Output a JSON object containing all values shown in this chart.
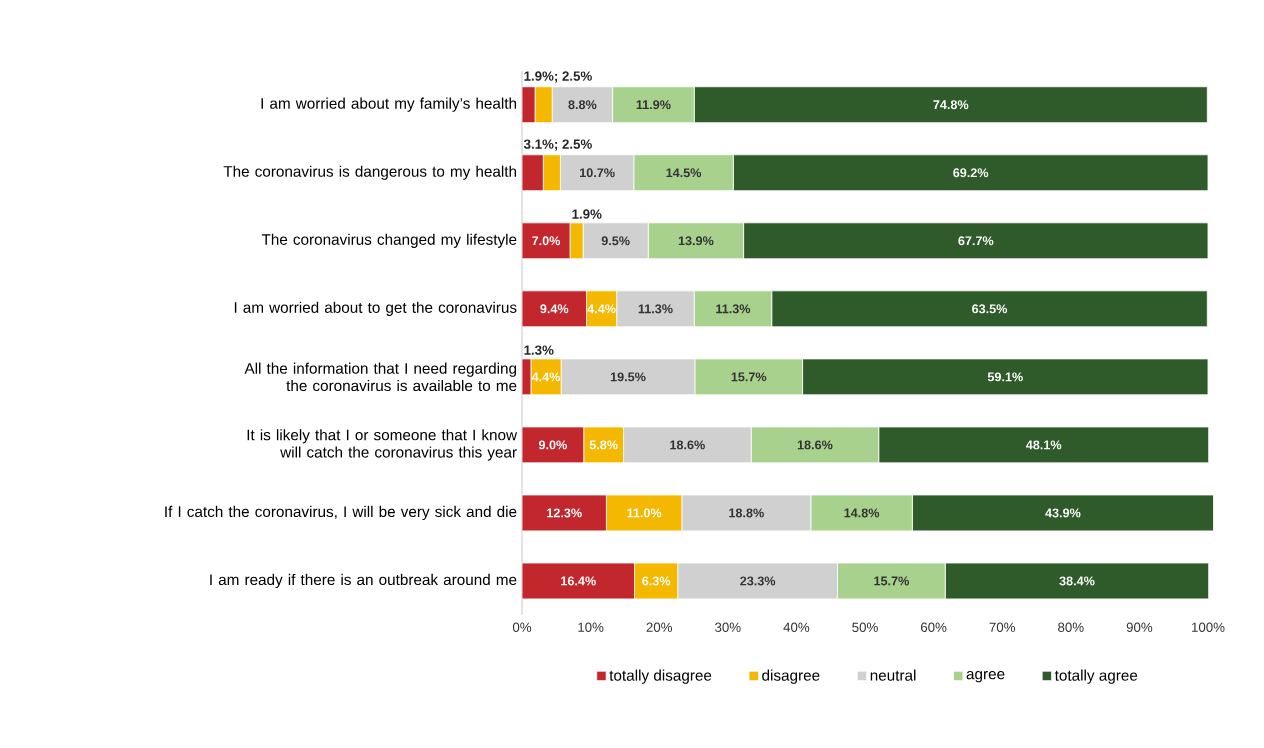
{
  "chart_data": {
    "type": "bar",
    "orientation": "horizontal",
    "stacked": true,
    "categories": [
      "I am worried about my family’s health",
      "The coronavirus is dangerous to my health",
      "The coronavirus changed my lifestyle",
      "I am worried about to get the coronavirus",
      "All the information that I need regarding the coronavirus is available to me",
      "It is likely that I or someone that I know will catch the coronavirus this year",
      "If I catch the coronavirus, I will be very sick and die",
      "I am ready if there is an outbreak around me"
    ],
    "series": [
      {
        "name": "totally disagree",
        "color": "#c1272d",
        "values": [
          1.9,
          3.1,
          7.0,
          9.4,
          1.3,
          9.0,
          12.3,
          16.4
        ],
        "value_labels": [
          null,
          null,
          "7.0%",
          "9.4%",
          null,
          "9.0%",
          "12.3%",
          "16.4%"
        ]
      },
      {
        "name": "disagree",
        "color": "#f5b800",
        "values": [
          2.5,
          2.5,
          1.9,
          4.4,
          4.4,
          5.8,
          11.0,
          6.3
        ],
        "value_labels": [
          null,
          null,
          null,
          "4.4%",
          "4.4%",
          "5.8%",
          "11.0%",
          "6.3%"
        ]
      },
      {
        "name": "neutral",
        "color": "#d0d0d0",
        "values": [
          8.8,
          10.7,
          9.5,
          11.3,
          19.5,
          18.6,
          18.8,
          23.3
        ],
        "value_labels": [
          "8.8%",
          "10.7%",
          "9.5%",
          "11.3%",
          "19.5%",
          "18.6%",
          "18.8%",
          "23.3%"
        ]
      },
      {
        "name": "agree",
        "color": "#a9d18e",
        "values": [
          11.9,
          14.5,
          13.9,
          11.3,
          15.7,
          18.6,
          14.8,
          15.7
        ],
        "value_labels": [
          "11.9%",
          "14.5%",
          "13.9%",
          "11.3%",
          "15.7%",
          "18.6%",
          "14.8%",
          "15.7%"
        ]
      },
      {
        "name": "totally agree",
        "color": "#2f5a2a",
        "values": [
          74.8,
          69.2,
          67.7,
          63.5,
          59.1,
          48.1,
          43.9,
          38.4
        ],
        "value_labels": [
          "74.8%",
          "69.2%",
          "67.7%",
          "63.5%",
          "59.1%",
          "48.1%",
          "43.9%",
          "38.4%"
        ]
      }
    ],
    "annotations": [
      "1.9%; 2.5%",
      "3.1%; 2.5%",
      "1.9%",
      "1.3%"
    ],
    "xlim": [
      0,
      101
    ],
    "xticks": [
      {
        "value": 0,
        "label": "0%"
      },
      {
        "value": 10,
        "label": "10%"
      },
      {
        "value": 20,
        "label": "20%"
      },
      {
        "value": 30,
        "label": "30%"
      },
      {
        "value": 40,
        "label": "40%"
      },
      {
        "value": 50,
        "label": "50%"
      },
      {
        "value": 60,
        "label": "60%"
      },
      {
        "value": 70,
        "label": "70%"
      },
      {
        "value": 80,
        "label": "80%"
      },
      {
        "value": 90,
        "label": "90%"
      },
      {
        "value": 100,
        "label": "100%"
      }
    ],
    "legend": "bottom"
  }
}
